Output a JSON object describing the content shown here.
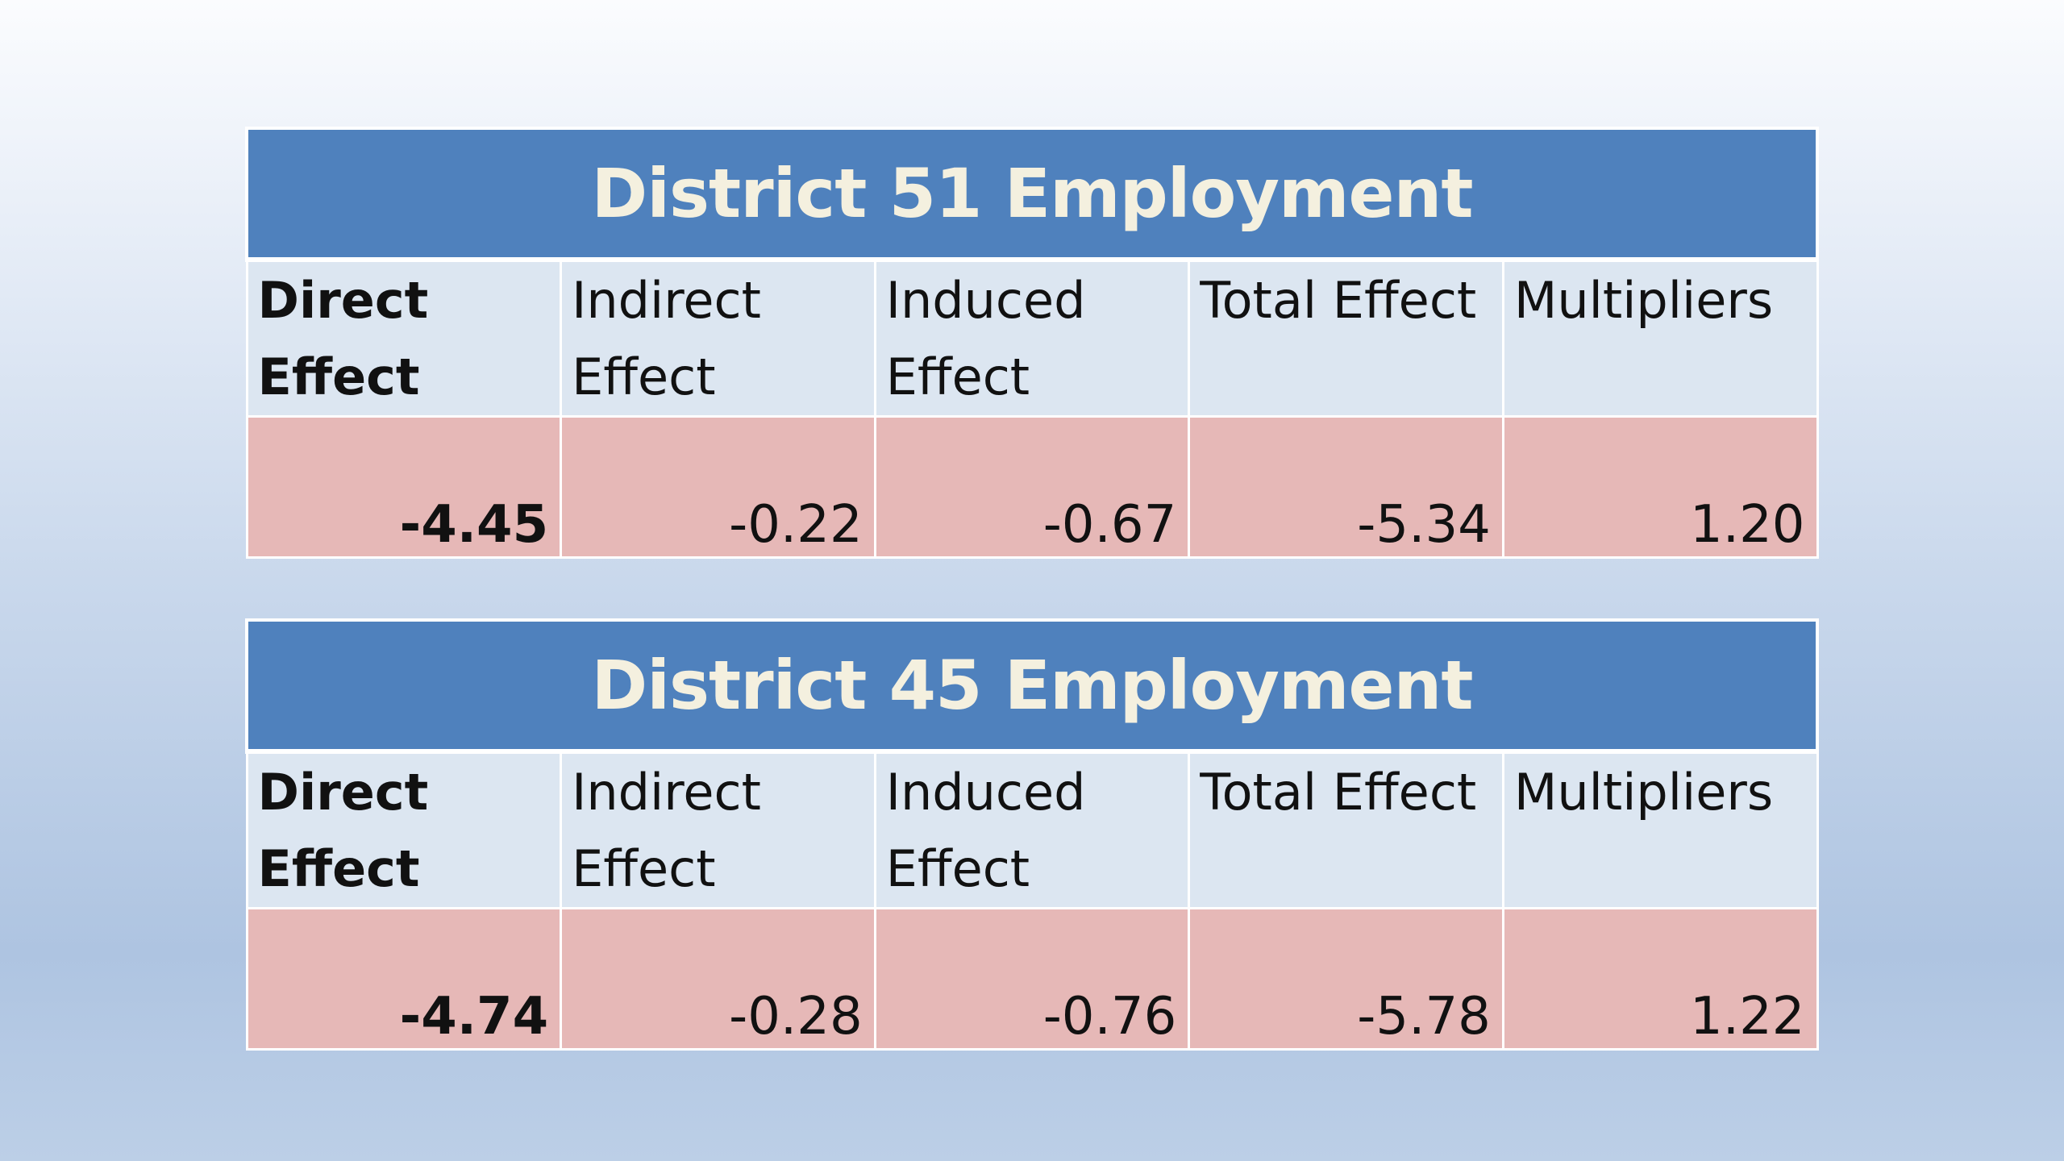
{
  "tables": [
    {
      "title": "District 51 Employment",
      "headers": [
        {
          "line1": "Direct",
          "line2": "Effect"
        },
        {
          "line1": "Indirect",
          "line2": "Effect"
        },
        {
          "line1": "Induced",
          "line2": "Effect"
        },
        {
          "line1": "Total Effect",
          "line2": ""
        },
        {
          "line1": "Multipliers",
          "line2": ""
        }
      ],
      "values": [
        "-4.45",
        "-0.22",
        "-0.67",
        "-5.34",
        "1.20"
      ]
    },
    {
      "title": "District 45 Employment",
      "headers": [
        {
          "line1": "Direct",
          "line2": "Effect"
        },
        {
          "line1": "Indirect",
          "line2": "Effect"
        },
        {
          "line1": "Induced",
          "line2": "Effect"
        },
        {
          "line1": "Total Effect",
          "line2": ""
        },
        {
          "line1": "Multipliers",
          "line2": ""
        }
      ],
      "values": [
        "-4.74",
        "-0.28",
        "-0.76",
        "-5.78",
        "1.22"
      ]
    }
  ],
  "colors": {
    "title_bg": "#4f81bd",
    "title_text": "#f4f0df",
    "header_bg": "#dce6f1",
    "value_bg": "#e6b8b7"
  }
}
